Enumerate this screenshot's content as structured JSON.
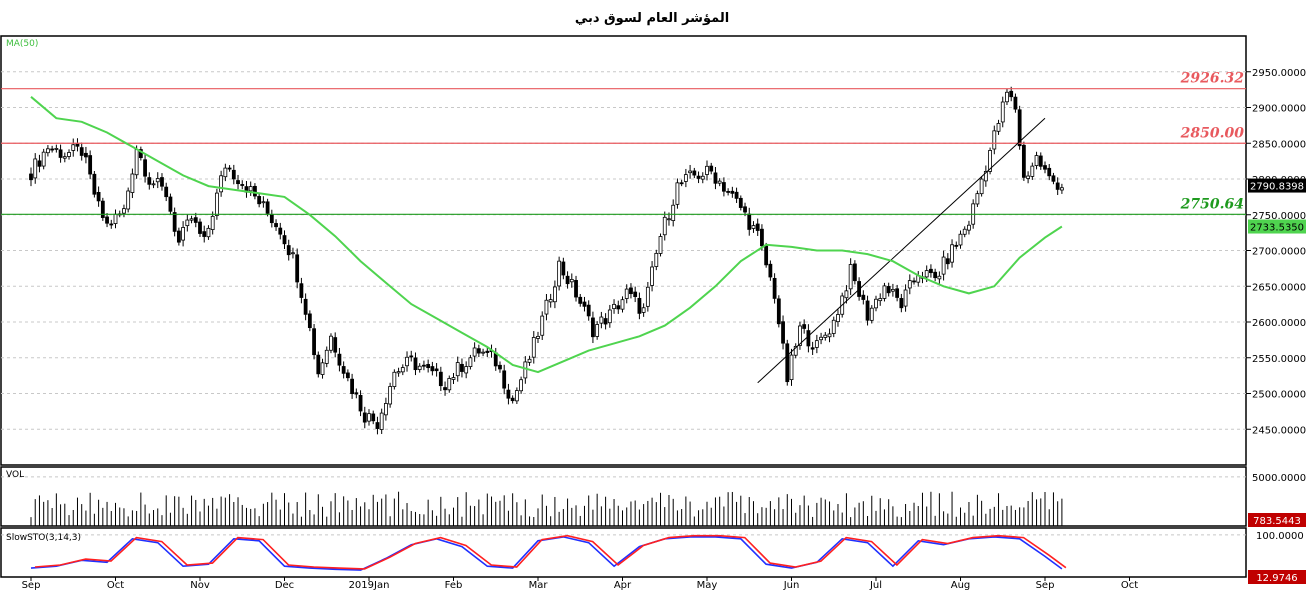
{
  "chart_data": {
    "type": "candlestick",
    "title": "المؤشر العام لسوق دبي",
    "indicator_labels": {
      "ma": "MA(50)",
      "volume": "VOL",
      "stochastic": "SlowSTO(3,14,3)"
    },
    "x_ticks": [
      "Sep",
      "Oct",
      "Nov",
      "Dec",
      "2019Jan",
      "Feb",
      "Mar",
      "Apr",
      "May",
      "Jun",
      "Jul",
      "Aug",
      "Sep",
      "Oct"
    ],
    "price_axis": {
      "ticks": [
        "2950.0000",
        "2900.0000",
        "2850.0000",
        "2800.0000",
        "2750.0000",
        "2700.0000",
        "2650.0000",
        "2600.0000",
        "2550.0000",
        "2500.0000",
        "2450.0000"
      ],
      "ylim": [
        2400,
        3000
      ]
    },
    "volume_axis": {
      "ticks": [
        "5000.0000"
      ],
      "ylim": [
        0,
        6000
      ]
    },
    "sto_axis": {
      "ticks": [
        "100.0000"
      ],
      "ylim": [
        0,
        110
      ]
    },
    "levels": [
      {
        "value": 2926.32,
        "label": "2926.32",
        "color": "#e8595e"
      },
      {
        "value": 2850.0,
        "label": "2850.00",
        "color": "#e8595e"
      },
      {
        "value": 2750.64,
        "label": "2750.64",
        "color": "#1e9a1e"
      }
    ],
    "trendline": {
      "start": {
        "month": 8.6,
        "value": 2515
      },
      "end": {
        "month": 12.0,
        "value": 2885
      }
    },
    "last_values": {
      "price": "2790.8398",
      "ma": "2733.5350",
      "volume": "783.5443",
      "sto": "12.9746"
    },
    "price_path": [
      [
        0.0,
        2810
      ],
      [
        0.2,
        2845
      ],
      [
        0.4,
        2835
      ],
      [
        0.6,
        2840
      ],
      [
        0.8,
        2760
      ],
      [
        0.9,
        2735
      ],
      [
        1.1,
        2755
      ],
      [
        1.25,
        2845
      ],
      [
        1.4,
        2800
      ],
      [
        1.6,
        2780
      ],
      [
        1.75,
        2710
      ],
      [
        1.9,
        2745
      ],
      [
        2.05,
        2710
      ],
      [
        2.3,
        2820
      ],
      [
        2.55,
        2790
      ],
      [
        2.75,
        2760
      ],
      [
        2.95,
        2730
      ],
      [
        3.1,
        2690
      ],
      [
        3.25,
        2620
      ],
      [
        3.4,
        2530
      ],
      [
        3.55,
        2580
      ],
      [
        3.75,
        2520
      ],
      [
        3.95,
        2470
      ],
      [
        4.1,
        2460
      ],
      [
        4.3,
        2530
      ],
      [
        4.5,
        2545
      ],
      [
        4.7,
        2530
      ],
      [
        4.9,
        2515
      ],
      [
        5.1,
        2540
      ],
      [
        5.3,
        2560
      ],
      [
        5.5,
        2545
      ],
      [
        5.7,
        2490
      ],
      [
        5.9,
        2550
      ],
      [
        6.1,
        2620
      ],
      [
        6.25,
        2680
      ],
      [
        6.45,
        2640
      ],
      [
        6.65,
        2590
      ],
      [
        6.85,
        2610
      ],
      [
        7.05,
        2640
      ],
      [
        7.25,
        2615
      ],
      [
        7.45,
        2720
      ],
      [
        7.65,
        2790
      ],
      [
        7.85,
        2805
      ],
      [
        8.05,
        2810
      ],
      [
        8.2,
        2790
      ],
      [
        8.4,
        2760
      ],
      [
        8.6,
        2720
      ],
      [
        8.8,
        2640
      ],
      [
        8.95,
        2520
      ],
      [
        9.1,
        2590
      ],
      [
        9.3,
        2565
      ],
      [
        9.5,
        2600
      ],
      [
        9.7,
        2670
      ],
      [
        9.9,
        2610
      ],
      [
        10.1,
        2650
      ],
      [
        10.3,
        2625
      ],
      [
        10.5,
        2670
      ],
      [
        10.7,
        2660
      ],
      [
        10.9,
        2700
      ],
      [
        11.1,
        2740
      ],
      [
        11.25,
        2800
      ],
      [
        11.4,
        2860
      ],
      [
        11.55,
        2920
      ],
      [
        11.65,
        2900
      ],
      [
        11.75,
        2800
      ],
      [
        11.9,
        2830
      ],
      [
        12.05,
        2800
      ],
      [
        12.2,
        2791
      ]
    ],
    "ma_path": [
      [
        0.0,
        2915
      ],
      [
        0.3,
        2885
      ],
      [
        0.6,
        2880
      ],
      [
        0.9,
        2865
      ],
      [
        1.2,
        2845
      ],
      [
        1.5,
        2825
      ],
      [
        1.8,
        2805
      ],
      [
        2.1,
        2790
      ],
      [
        2.4,
        2785
      ],
      [
        2.7,
        2780
      ],
      [
        3.0,
        2775
      ],
      [
        3.3,
        2750
      ],
      [
        3.6,
        2720
      ],
      [
        3.9,
        2685
      ],
      [
        4.2,
        2655
      ],
      [
        4.5,
        2625
      ],
      [
        4.8,
        2605
      ],
      [
        5.1,
        2585
      ],
      [
        5.4,
        2565
      ],
      [
        5.7,
        2540
      ],
      [
        6.0,
        2530
      ],
      [
        6.3,
        2545
      ],
      [
        6.6,
        2560
      ],
      [
        6.9,
        2570
      ],
      [
        7.2,
        2580
      ],
      [
        7.5,
        2595
      ],
      [
        7.8,
        2620
      ],
      [
        8.1,
        2650
      ],
      [
        8.4,
        2685
      ],
      [
        8.7,
        2708
      ],
      [
        9.0,
        2705
      ],
      [
        9.3,
        2700
      ],
      [
        9.6,
        2700
      ],
      [
        9.9,
        2695
      ],
      [
        10.2,
        2685
      ],
      [
        10.5,
        2665
      ],
      [
        10.8,
        2650
      ],
      [
        11.1,
        2640
      ],
      [
        11.4,
        2650
      ],
      [
        11.7,
        2690
      ],
      [
        12.0,
        2718
      ],
      [
        12.2,
        2733.535
      ]
    ],
    "sto_path": [
      [
        0.0,
        15
      ],
      [
        0.3,
        20
      ],
      [
        0.6,
        35
      ],
      [
        0.9,
        30
      ],
      [
        1.2,
        90
      ],
      [
        1.5,
        80
      ],
      [
        1.8,
        20
      ],
      [
        2.1,
        25
      ],
      [
        2.4,
        90
      ],
      [
        2.7,
        85
      ],
      [
        3.0,
        20
      ],
      [
        3.3,
        15
      ],
      [
        3.6,
        12
      ],
      [
        3.9,
        10
      ],
      [
        4.2,
        40
      ],
      [
        4.5,
        75
      ],
      [
        4.8,
        90
      ],
      [
        5.1,
        70
      ],
      [
        5.4,
        20
      ],
      [
        5.7,
        15
      ],
      [
        6.0,
        85
      ],
      [
        6.3,
        95
      ],
      [
        6.6,
        80
      ],
      [
        6.9,
        20
      ],
      [
        7.2,
        70
      ],
      [
        7.5,
        90
      ],
      [
        7.8,
        95
      ],
      [
        8.1,
        95
      ],
      [
        8.4,
        90
      ],
      [
        8.7,
        25
      ],
      [
        9.0,
        15
      ],
      [
        9.3,
        30
      ],
      [
        9.6,
        90
      ],
      [
        9.9,
        80
      ],
      [
        10.2,
        20
      ],
      [
        10.5,
        85
      ],
      [
        10.8,
        75
      ],
      [
        11.1,
        90
      ],
      [
        11.4,
        95
      ],
      [
        11.7,
        90
      ],
      [
        12.0,
        45
      ],
      [
        12.2,
        13
      ]
    ]
  }
}
